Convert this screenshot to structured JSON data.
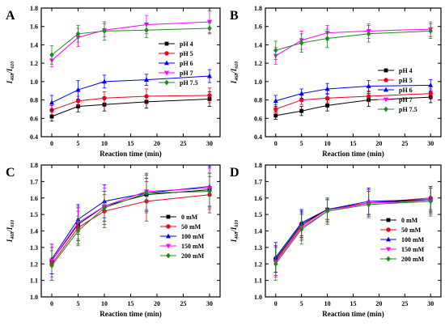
{
  "chart_data": [
    {
      "panel": "A",
      "type": "line",
      "x": [
        0,
        5,
        10,
        18,
        30
      ],
      "xlabel": "Reaction time (min)",
      "ylabel": "I468/I610",
      "ylim": [
        0.4,
        1.8
      ],
      "yticks": [
        0.4,
        0.6,
        0.8,
        1.0,
        1.2,
        1.4,
        1.6,
        1.8
      ],
      "ytick_labels": [
        "0.4",
        "0.6",
        "0.8",
        "1.0",
        "1.2",
        "1.4",
        "1.6",
        "1.8"
      ],
      "xlim": [
        -2,
        32
      ],
      "xticks": [
        0,
        5,
        10,
        15,
        20,
        25,
        30
      ],
      "xtick_labels": [
        "0",
        "5",
        "10",
        "15",
        "20",
        "25",
        "30"
      ],
      "grid": false,
      "legend_placement": "right",
      "series": [
        {
          "name": "pH 4",
          "color": "#000000",
          "marker": "square",
          "values": [
            0.62,
            0.73,
            0.75,
            0.78,
            0.81
          ],
          "errors": [
            0.05,
            0.06,
            0.07,
            0.07,
            0.08
          ]
        },
        {
          "name": "pH 5",
          "color": "#e8001c",
          "marker": "circle",
          "values": [
            0.69,
            0.79,
            0.82,
            0.84,
            0.85
          ],
          "errors": [
            0.05,
            0.05,
            0.07,
            0.08,
            0.08
          ]
        },
        {
          "name": "pH 6",
          "color": "#0000ee",
          "marker": "triangle",
          "values": [
            0.77,
            0.91,
            1.0,
            1.02,
            1.06
          ],
          "errors": [
            0.08,
            0.1,
            0.07,
            0.06,
            0.07
          ]
        },
        {
          "name": "pH 7",
          "color": "#ff00ff",
          "marker": "triangle-down",
          "values": [
            1.23,
            1.48,
            1.56,
            1.62,
            1.65
          ],
          "errors": [
            0.07,
            0.1,
            0.07,
            0.1,
            0.12
          ]
        },
        {
          "name": "pH 7.5",
          "color": "#1d8a1d",
          "marker": "diamond",
          "values": [
            1.29,
            1.52,
            1.55,
            1.56,
            1.58
          ],
          "errors": [
            0.1,
            0.09,
            0.1,
            0.08,
            0.06
          ]
        }
      ]
    },
    {
      "panel": "B",
      "type": "line",
      "x": [
        0,
        5,
        10,
        18,
        30
      ],
      "xlabel": "Reaction time (min)",
      "ylabel": "I468/I610",
      "ylim": [
        0.4,
        1.8
      ],
      "yticks": [
        0.4,
        0.6,
        0.8,
        1.0,
        1.2,
        1.4,
        1.6,
        1.8
      ],
      "ytick_labels": [
        "0.4",
        "0.6",
        "0.8",
        "1.0",
        "1.2",
        "1.4",
        "1.6",
        "1.8"
      ],
      "xlim": [
        -2,
        32
      ],
      "xticks": [
        0,
        5,
        10,
        15,
        20,
        25,
        30
      ],
      "xtick_labels": [
        "0",
        "5",
        "10",
        "15",
        "20",
        "25",
        "30"
      ],
      "grid": false,
      "legend_placement": "right",
      "series": [
        {
          "name": "pH 4",
          "color": "#000000",
          "marker": "square",
          "values": [
            0.63,
            0.68,
            0.74,
            0.8,
            0.83
          ],
          "errors": [
            0.04,
            0.05,
            0.06,
            0.07,
            0.06
          ]
        },
        {
          "name": "pH 5",
          "color": "#e8001c",
          "marker": "circle",
          "values": [
            0.7,
            0.8,
            0.82,
            0.84,
            0.87
          ],
          "errors": [
            0.05,
            0.05,
            0.05,
            0.06,
            0.05
          ]
        },
        {
          "name": "pH 6",
          "color": "#0000ee",
          "marker": "triangle",
          "values": [
            0.79,
            0.87,
            0.92,
            0.95,
            0.96
          ],
          "errors": [
            0.06,
            0.05,
            0.06,
            0.06,
            0.06
          ]
        },
        {
          "name": "pH 7",
          "color": "#ff00ff",
          "marker": "triangle-down",
          "values": [
            1.28,
            1.45,
            1.53,
            1.55,
            1.57
          ],
          "errors": [
            0.09,
            0.1,
            0.08,
            0.08,
            0.08
          ]
        },
        {
          "name": "pH 7.5",
          "color": "#1d8a1d",
          "marker": "diamond",
          "values": [
            1.34,
            1.42,
            1.47,
            1.52,
            1.55
          ],
          "errors": [
            0.1,
            0.1,
            0.1,
            0.09,
            0.08
          ]
        }
      ]
    },
    {
      "panel": "C",
      "type": "line",
      "x": [
        0,
        5,
        10,
        18,
        30
      ],
      "xlabel": "Reaction time (min)",
      "ylabel": "I468/I610",
      "ylim": [
        1.0,
        1.8
      ],
      "yticks": [
        1.0,
        1.1,
        1.2,
        1.3,
        1.4,
        1.5,
        1.6,
        1.7,
        1.8
      ],
      "ytick_labels": [
        "1.0",
        "1.1",
        "1.2",
        "1.3",
        "1.4",
        "1.5",
        "1.6",
        "1.7",
        "1.8"
      ],
      "xlim": [
        -2,
        32
      ],
      "xticks": [
        0,
        5,
        10,
        15,
        20,
        25,
        30
      ],
      "xtick_labels": [
        "0",
        "5",
        "10",
        "15",
        "20",
        "25",
        "30"
      ],
      "grid": false,
      "legend_placement": "right",
      "series": [
        {
          "name": "0 mM",
          "color": "#000000",
          "marker": "square",
          "values": [
            1.22,
            1.44,
            1.55,
            1.62,
            1.65
          ],
          "errors": [
            0.08,
            0.1,
            0.09,
            0.1,
            0.1
          ]
        },
        {
          "name": "50 mM",
          "color": "#e8001c",
          "marker": "circle",
          "values": [
            1.2,
            1.42,
            1.52,
            1.58,
            1.62
          ],
          "errors": [
            0.1,
            0.1,
            0.1,
            0.12,
            0.11
          ]
        },
        {
          "name": "100 mM",
          "color": "#0000ee",
          "marker": "triangle",
          "values": [
            1.23,
            1.47,
            1.58,
            1.63,
            1.67
          ],
          "errors": [
            0.09,
            0.09,
            0.1,
            0.11,
            0.12
          ]
        },
        {
          "name": "150 mM",
          "color": "#ff00ff",
          "marker": "triangle-down",
          "values": [
            1.22,
            1.45,
            1.55,
            1.64,
            1.66
          ],
          "errors": [
            0.1,
            0.1,
            0.11,
            0.11,
            0.12
          ]
        },
        {
          "name": "200 mM",
          "color": "#1d8a1d",
          "marker": "diamond",
          "values": [
            1.19,
            1.4,
            1.54,
            1.63,
            1.64
          ],
          "errors": [
            0.09,
            0.09,
            0.1,
            0.12,
            0.11
          ]
        }
      ]
    },
    {
      "panel": "D",
      "type": "line",
      "x": [
        0,
        5,
        10,
        18,
        30
      ],
      "xlabel": "Reaction time (min)",
      "ylabel": "I468/I610",
      "ylim": [
        1.0,
        1.8
      ],
      "yticks": [
        1.0,
        1.1,
        1.2,
        1.3,
        1.4,
        1.5,
        1.6,
        1.7,
        1.8
      ],
      "ytick_labels": [
        "1.0",
        "1.1",
        "1.2",
        "1.3",
        "1.4",
        "1.5",
        "1.6",
        "1.7",
        "1.8"
      ],
      "xlim": [
        -2,
        32
      ],
      "xticks": [
        0,
        5,
        10,
        15,
        20,
        25,
        30
      ],
      "xtick_labels": [
        "0",
        "5",
        "10",
        "15",
        "20",
        "25",
        "30"
      ],
      "grid": false,
      "legend_placement": "right",
      "series": [
        {
          "name": "0 mM",
          "color": "#000000",
          "marker": "square",
          "values": [
            1.23,
            1.44,
            1.53,
            1.57,
            1.59
          ],
          "errors": [
            0.08,
            0.08,
            0.06,
            0.07,
            0.07
          ]
        },
        {
          "name": "50 mM",
          "color": "#e8001c",
          "marker": "circle",
          "values": [
            1.22,
            1.43,
            1.53,
            1.57,
            1.6
          ],
          "errors": [
            0.09,
            0.08,
            0.06,
            0.08,
            0.07
          ]
        },
        {
          "name": "100 mM",
          "color": "#0000ee",
          "marker": "triangle",
          "values": [
            1.24,
            1.45,
            1.53,
            1.58,
            1.59
          ],
          "errors": [
            0.09,
            0.08,
            0.07,
            0.08,
            0.08
          ]
        },
        {
          "name": "150 mM",
          "color": "#ff00ff",
          "marker": "triangle-down",
          "values": [
            1.21,
            1.42,
            1.52,
            1.57,
            1.58
          ],
          "errors": [
            0.09,
            0.08,
            0.07,
            0.08,
            0.08
          ]
        },
        {
          "name": "200 mM",
          "color": "#1d8a1d",
          "marker": "diamond",
          "values": [
            1.2,
            1.41,
            1.52,
            1.56,
            1.58
          ],
          "errors": [
            0.1,
            0.09,
            0.08,
            0.08,
            0.09
          ]
        }
      ]
    }
  ]
}
